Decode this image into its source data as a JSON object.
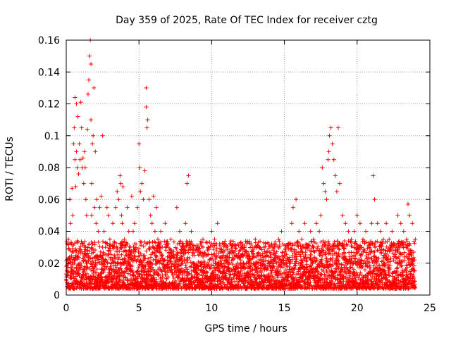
{
  "chart_data": {
    "type": "scatter",
    "title": "Day 359 of 2025, Rate Of TEC Index for receiver cztg",
    "xlabel": "GPS time / hours",
    "ylabel": "ROTI / TECUs",
    "xlim": [
      0,
      25
    ],
    "ylim": [
      0,
      0.16
    ],
    "xticks": [
      0,
      5,
      10,
      15,
      20,
      25
    ],
    "xtick_labels": [
      "0",
      "5",
      "10",
      "15",
      "20",
      "25"
    ],
    "yticks": [
      0,
      0.02,
      0.04,
      0.06,
      0.08,
      0.1,
      0.12,
      0.14,
      0.16
    ],
    "ytick_labels": [
      "0",
      "0.02",
      "0.04",
      "0.06",
      "0.08",
      "0.1",
      "0.12",
      "0.14",
      "0.16"
    ],
    "grid": true,
    "marker": "plus",
    "color": "#ff0000",
    "series": [
      {
        "name": "ROTI",
        "x": [
          0.05,
          0.15,
          0.25,
          0.3,
          0.4,
          0.45,
          0.5,
          0.55,
          0.6,
          0.6,
          0.65,
          0.7,
          0.7,
          0.75,
          0.8,
          0.85,
          0.9,
          0.95,
          1.0,
          1.05,
          1.1,
          1.15,
          1.2,
          1.25,
          1.3,
          1.35,
          1.4,
          1.45,
          1.5,
          1.55,
          1.6,
          1.65,
          1.7,
          1.7,
          1.75,
          1.75,
          1.8,
          1.85,
          1.9,
          1.95,
          2.0,
          2.05,
          2.1,
          2.2,
          2.3,
          2.4,
          2.5,
          2.6,
          2.7,
          2.8,
          2.9,
          3.0,
          3.1,
          3.2,
          3.3,
          3.4,
          3.5,
          3.6,
          3.7,
          3.75,
          3.8,
          3.85,
          3.9,
          4.0,
          4.1,
          4.2,
          4.3,
          4.4,
          4.5,
          4.6,
          4.7,
          4.8,
          4.9,
          5.0,
          5.05,
          5.1,
          5.2,
          5.3,
          5.4,
          5.5,
          5.5,
          5.55,
          5.6,
          5.7,
          5.8,
          5.9,
          6.0,
          6.1,
          6.2,
          6.3,
          6.4,
          6.5,
          6.6,
          6.8,
          7.0,
          7.2,
          7.4,
          7.6,
          7.8,
          8.0,
          8.2,
          8.3,
          8.4,
          8.6,
          8.8,
          9.0,
          9.2,
          9.4,
          9.6,
          9.8,
          10.0,
          10.2,
          10.4,
          10.6,
          10.8,
          11.0,
          11.2,
          11.4,
          11.6,
          11.8,
          12.0,
          12.2,
          12.4,
          12.6,
          12.8,
          13.0,
          13.2,
          13.4,
          13.6,
          13.8,
          14.0,
          14.2,
          14.4,
          14.6,
          14.8,
          15.0,
          15.2,
          15.4,
          15.5,
          15.6,
          15.8,
          16.0,
          16.2,
          16.4,
          16.6,
          16.8,
          17.0,
          17.2,
          17.4,
          17.5,
          17.6,
          17.7,
          17.8,
          17.9,
          18.0,
          18.05,
          18.1,
          18.2,
          18.3,
          18.4,
          18.5,
          18.6,
          18.7,
          18.8,
          19.0,
          19.2,
          19.4,
          19.6,
          19.8,
          20.0,
          20.2,
          20.4,
          20.6,
          20.8,
          21.0,
          21.1,
          21.2,
          21.4,
          21.6,
          21.8,
          22.0,
          22.2,
          22.4,
          22.6,
          22.8,
          23.0,
          23.2,
          23.4,
          23.5,
          23.6,
          23.8,
          24.0
        ],
        "y": [
          0.012,
          0.035,
          0.06,
          0.045,
          0.067,
          0.05,
          0.095,
          0.105,
          0.124,
          0.085,
          0.068,
          0.12,
          0.09,
          0.08,
          0.112,
          0.076,
          0.095,
          0.085,
          0.121,
          0.105,
          0.08,
          0.086,
          0.07,
          0.09,
          0.08,
          0.06,
          0.05,
          0.104,
          0.126,
          0.135,
          0.15,
          0.16,
          0.145,
          0.11,
          0.07,
          0.05,
          0.095,
          0.1,
          0.13,
          0.055,
          0.09,
          0.045,
          0.06,
          0.04,
          0.055,
          0.062,
          0.1,
          0.04,
          0.03,
          0.055,
          0.05,
          0.035,
          0.02,
          0.045,
          0.03,
          0.055,
          0.065,
          0.06,
          0.075,
          0.07,
          0.05,
          0.045,
          0.068,
          0.035,
          0.025,
          0.055,
          0.04,
          0.03,
          0.062,
          0.04,
          0.045,
          0.032,
          0.055,
          0.095,
          0.08,
          0.065,
          0.07,
          0.06,
          0.078,
          0.13,
          0.118,
          0.105,
          0.11,
          0.06,
          0.05,
          0.045,
          0.062,
          0.04,
          0.055,
          0.035,
          0.03,
          0.04,
          0.025,
          0.045,
          0.03,
          0.035,
          0.025,
          0.055,
          0.04,
          0.03,
          0.045,
          0.07,
          0.075,
          0.04,
          0.025,
          0.03,
          0.02,
          0.035,
          0.025,
          0.03,
          0.04,
          0.035,
          0.045,
          0.02,
          0.025,
          0.03,
          0.02,
          0.015,
          0.018,
          0.02,
          0.022,
          0.02,
          0.025,
          0.018,
          0.03,
          0.035,
          0.025,
          0.02,
          0.03,
          0.025,
          0.02,
          0.03,
          0.025,
          0.035,
          0.04,
          0.025,
          0.03,
          0.02,
          0.045,
          0.055,
          0.06,
          0.04,
          0.035,
          0.045,
          0.03,
          0.04,
          0.035,
          0.045,
          0.04,
          0.05,
          0.08,
          0.07,
          0.065,
          0.06,
          0.085,
          0.09,
          0.1,
          0.105,
          0.095,
          0.085,
          0.075,
          0.065,
          0.105,
          0.07,
          0.05,
          0.045,
          0.04,
          0.035,
          0.04,
          0.05,
          0.045,
          0.035,
          0.04,
          0.03,
          0.045,
          0.075,
          0.06,
          0.045,
          0.04,
          0.035,
          0.045,
          0.035,
          0.04,
          0.03,
          0.05,
          0.045,
          0.04,
          0.035,
          0.057,
          0.05,
          0.045,
          0.035
        ]
      }
    ]
  }
}
